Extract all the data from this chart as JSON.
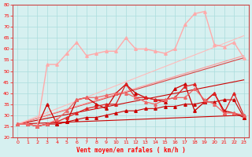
{
  "xlabel": "Vent moyen/en rafales ( km/h )",
  "xlim": [
    -0.5,
    23.5
  ],
  "ylim": [
    20,
    80
  ],
  "xticks": [
    0,
    1,
    2,
    3,
    4,
    5,
    6,
    7,
    8,
    9,
    10,
    11,
    12,
    13,
    14,
    15,
    16,
    17,
    18,
    19,
    20,
    21,
    22,
    23
  ],
  "yticks": [
    20,
    25,
    30,
    35,
    40,
    45,
    50,
    55,
    60,
    65,
    70,
    75,
    80
  ],
  "background_color": "#d6f0f0",
  "grid_color": "#aadddd",
  "lines": [
    {
      "x": [
        0,
        23
      ],
      "y": [
        26,
        30
      ],
      "color": "#cc0000",
      "lw": 0.8,
      "marker": null,
      "ms": 0
    },
    {
      "x": [
        0,
        23
      ],
      "y": [
        26,
        46
      ],
      "color": "#cc0000",
      "lw": 0.8,
      "marker": null,
      "ms": 0
    },
    {
      "x": [
        0,
        23
      ],
      "y": [
        26,
        56
      ],
      "color": "#dd4444",
      "lw": 0.8,
      "marker": null,
      "ms": 0
    },
    {
      "x": [
        0,
        23
      ],
      "y": [
        26,
        57
      ],
      "color": "#ff9999",
      "lw": 0.8,
      "marker": null,
      "ms": 0
    },
    {
      "x": [
        0,
        23
      ],
      "y": [
        26,
        66
      ],
      "color": "#ffbbbb",
      "lw": 0.8,
      "marker": null,
      "ms": 0
    },
    {
      "x": [
        0,
        1,
        2,
        3,
        4,
        5,
        6,
        7,
        8,
        9,
        10,
        11,
        12,
        13,
        14,
        15,
        16,
        17,
        18,
        19,
        20,
        21,
        22,
        23
      ],
      "y": [
        26,
        26,
        25,
        26,
        26,
        27,
        28,
        29,
        29,
        30,
        31,
        32,
        32,
        33,
        33,
        34,
        34,
        35,
        35,
        36,
        36,
        37,
        37,
        29
      ],
      "color": "#cc0000",
      "lw": 0.8,
      "marker": "^",
      "ms": 2.5
    },
    {
      "x": [
        0,
        1,
        2,
        3,
        4,
        5,
        6,
        7,
        8,
        9,
        10,
        11,
        12,
        13,
        14,
        15,
        16,
        17,
        18,
        19,
        20,
        21,
        22,
        23
      ],
      "y": [
        26,
        26,
        25,
        35,
        26,
        27,
        37,
        38,
        35,
        33,
        40,
        44,
        40,
        38,
        37,
        36,
        42,
        44,
        32,
        36,
        40,
        32,
        31,
        29
      ],
      "color": "#cc0000",
      "lw": 0.9,
      "marker": "^",
      "ms": 2.5
    },
    {
      "x": [
        0,
        1,
        2,
        3,
        4,
        5,
        6,
        7,
        8,
        9,
        10,
        11,
        12,
        13,
        14,
        15,
        16,
        17,
        18,
        19,
        20,
        21,
        22,
        23
      ],
      "y": [
        26,
        26,
        25,
        26,
        27,
        29,
        31,
        33,
        34,
        35,
        35,
        44,
        38,
        38,
        37,
        37,
        38,
        43,
        44,
        36,
        40,
        31,
        40,
        30
      ],
      "color": "#dd2222",
      "lw": 0.9,
      "marker": "^",
      "ms": 2.5
    },
    {
      "x": [
        0,
        1,
        2,
        3,
        4,
        5,
        6,
        7,
        8,
        9,
        10,
        11,
        12,
        13,
        14,
        15,
        16,
        17,
        18,
        19,
        20,
        21,
        22,
        23
      ],
      "y": [
        26,
        26,
        25,
        53,
        53,
        58,
        63,
        57,
        58,
        59,
        59,
        65,
        60,
        60,
        59,
        58,
        60,
        71,
        76,
        77,
        62,
        61,
        63,
        56
      ],
      "color": "#ffaaaa",
      "lw": 1.0,
      "marker": "^",
      "ms": 2.5
    },
    {
      "x": [
        0,
        1,
        2,
        3,
        4,
        5,
        6,
        7,
        8,
        9,
        10,
        11,
        12,
        13,
        14,
        15,
        16,
        17,
        18,
        19,
        20,
        21,
        22,
        23
      ],
      "y": [
        26,
        26,
        25,
        26,
        28,
        32,
        37,
        38,
        38,
        39,
        40,
        40,
        38,
        36,
        35,
        37,
        38,
        38,
        42,
        37,
        35,
        31,
        31,
        30
      ],
      "color": "#ee6666",
      "lw": 0.9,
      "marker": "^",
      "ms": 2.5
    }
  ]
}
